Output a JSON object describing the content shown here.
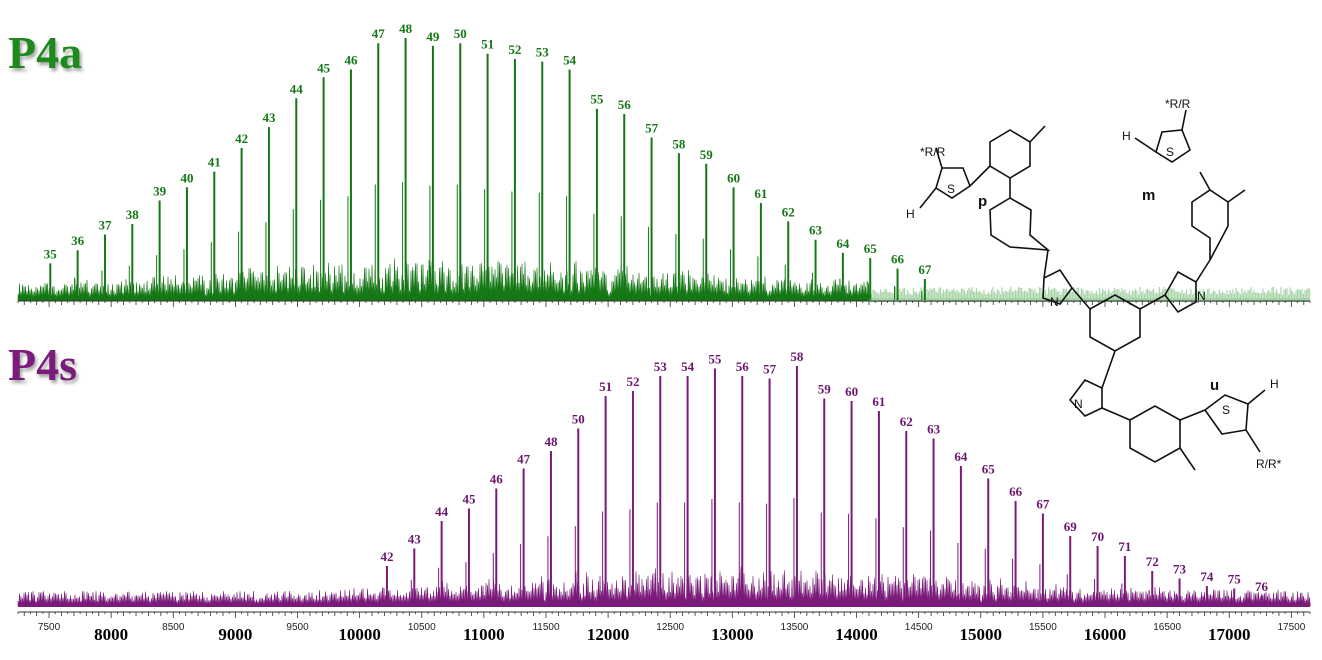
{
  "colors": {
    "top_series": "#147814",
    "top_series_faded": "#a9d4a9",
    "top_labels": "#147814",
    "top_title": "#1e8a1e",
    "bottom_series": "#7a1a7a",
    "bottom_labels": "#6e146e",
    "bottom_title": "#7b1c7b",
    "axis": "#333333",
    "structure": "#111111"
  },
  "panels": {
    "top_title": "P4a",
    "bottom_title": "P4s"
  },
  "chart_data": [
    {
      "type": "bar",
      "title": "P4a",
      "xlim": [
        7250,
        17650
      ],
      "ylim": [
        0,
        100
      ],
      "faded_from_x": 14100,
      "peaks": [
        {
          "label": "35",
          "x": 7510,
          "y": 14
        },
        {
          "label": "36",
          "x": 7730,
          "y": 19
        },
        {
          "label": "37",
          "x": 7950,
          "y": 25
        },
        {
          "label": "38",
          "x": 8170,
          "y": 29
        },
        {
          "label": "39",
          "x": 8390,
          "y": 38
        },
        {
          "label": "40",
          "x": 8610,
          "y": 43
        },
        {
          "label": "41",
          "x": 8830,
          "y": 49
        },
        {
          "label": "42",
          "x": 9050,
          "y": 58
        },
        {
          "label": "43",
          "x": 9270,
          "y": 66
        },
        {
          "label": "44",
          "x": 9490,
          "y": 77
        },
        {
          "label": "45",
          "x": 9710,
          "y": 85
        },
        {
          "label": "46",
          "x": 9930,
          "y": 88
        },
        {
          "label": "47",
          "x": 10150,
          "y": 98
        },
        {
          "label": "48",
          "x": 10370,
          "y": 100
        },
        {
          "label": "49",
          "x": 10590,
          "y": 97
        },
        {
          "label": "50",
          "x": 10810,
          "y": 98
        },
        {
          "label": "51",
          "x": 11030,
          "y": 94
        },
        {
          "label": "52",
          "x": 11250,
          "y": 92
        },
        {
          "label": "53",
          "x": 11470,
          "y": 91
        },
        {
          "label": "54",
          "x": 11690,
          "y": 88
        },
        {
          "label": "55",
          "x": 11910,
          "y": 73
        },
        {
          "label": "56",
          "x": 12130,
          "y": 71
        },
        {
          "label": "57",
          "x": 12350,
          "y": 62
        },
        {
          "label": "58",
          "x": 12570,
          "y": 56
        },
        {
          "label": "59",
          "x": 12790,
          "y": 52
        },
        {
          "label": "60",
          "x": 13010,
          "y": 43
        },
        {
          "label": "61",
          "x": 13230,
          "y": 37
        },
        {
          "label": "62",
          "x": 13450,
          "y": 30
        },
        {
          "label": "63",
          "x": 13670,
          "y": 23
        },
        {
          "label": "64",
          "x": 13890,
          "y": 18
        },
        {
          "label": "65",
          "x": 14110,
          "y": 16
        },
        {
          "label": "66",
          "x": 14330,
          "y": 12
        },
        {
          "label": "67",
          "x": 14550,
          "y": 8
        }
      ]
    },
    {
      "type": "bar",
      "title": "P4s",
      "xlim": [
        7250,
        17650
      ],
      "ylim": [
        0,
        100
      ],
      "xticks_major": [
        8000,
        9000,
        10000,
        11000,
        12000,
        13000,
        14000,
        15000,
        16000,
        17000
      ],
      "xticks_minor": [
        7500,
        8500,
        9500,
        10500,
        11500,
        12500,
        13500,
        14500,
        15500,
        16500,
        17500
      ],
      "peaks": [
        {
          "label": "42",
          "x": 10220,
          "y": 16
        },
        {
          "label": "43",
          "x": 10440,
          "y": 23
        },
        {
          "label": "44",
          "x": 10660,
          "y": 34
        },
        {
          "label": "45",
          "x": 10880,
          "y": 39
        },
        {
          "label": "46",
          "x": 11100,
          "y": 47
        },
        {
          "label": "47",
          "x": 11320,
          "y": 55
        },
        {
          "label": "48",
          "x": 11540,
          "y": 62
        },
        {
          "label": "50",
          "x": 11760,
          "y": 71
        },
        {
          "label": "51",
          "x": 11980,
          "y": 84
        },
        {
          "label": "52",
          "x": 12200,
          "y": 86
        },
        {
          "label": "53",
          "x": 12420,
          "y": 92
        },
        {
          "label": "54",
          "x": 12640,
          "y": 92
        },
        {
          "label": "55",
          "x": 12860,
          "y": 95
        },
        {
          "label": "56",
          "x": 13080,
          "y": 92
        },
        {
          "label": "57",
          "x": 13300,
          "y": 91
        },
        {
          "label": "58",
          "x": 13520,
          "y": 96
        },
        {
          "label": "59",
          "x": 13740,
          "y": 83
        },
        {
          "label": "60",
          "x": 13960,
          "y": 82
        },
        {
          "label": "61",
          "x": 14180,
          "y": 78
        },
        {
          "label": "62",
          "x": 14400,
          "y": 70
        },
        {
          "label": "63",
          "x": 14620,
          "y": 67
        },
        {
          "label": "64",
          "x": 14840,
          "y": 56
        },
        {
          "label": "65",
          "x": 15060,
          "y": 51
        },
        {
          "label": "66",
          "x": 15280,
          "y": 42
        },
        {
          "label": "67",
          "x": 15500,
          "y": 37
        },
        {
          "label": "69",
          "x": 15720,
          "y": 28
        },
        {
          "label": "70",
          "x": 15940,
          "y": 24
        },
        {
          "label": "71",
          "x": 16160,
          "y": 20
        },
        {
          "label": "72",
          "x": 16380,
          "y": 14
        },
        {
          "label": "73",
          "x": 16600,
          "y": 11
        },
        {
          "label": "74",
          "x": 16820,
          "y": 8
        },
        {
          "label": "75",
          "x": 17040,
          "y": 7
        },
        {
          "label": "76",
          "x": 17260,
          "y": 4
        }
      ]
    }
  ],
  "structure": {
    "labels": {
      "rr_top_left": "*R/R",
      "rr_top_right": "*R/R",
      "rr_bottom": "R/R*",
      "h_left": "H",
      "h_right": "H",
      "h_bottom": "H",
      "s": "S",
      "n": "N",
      "sub_p": "p",
      "sub_m": "m",
      "sub_u": "u"
    }
  }
}
